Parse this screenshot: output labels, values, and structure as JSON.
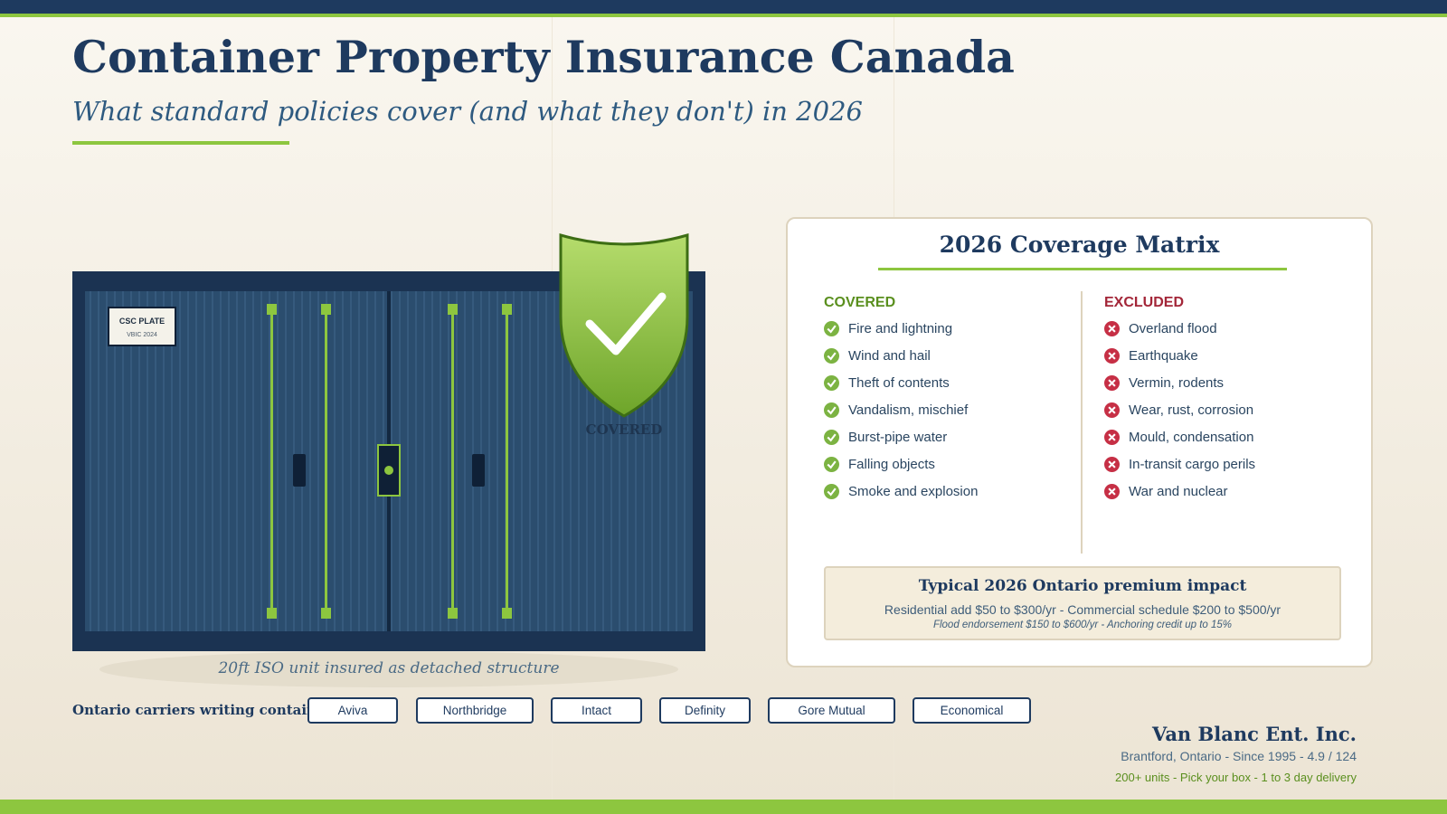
{
  "header": {
    "title": "Container Property Insurance Canada",
    "subtitle": "What standard policies cover (and what they don't) in 2026"
  },
  "container": {
    "plate_title": "CSC PLATE",
    "plate_subtitle": "VBIC 2024",
    "badge": "COVERED",
    "caption": "20ft ISO unit insured as detached structure"
  },
  "matrix": {
    "title": "2026 Coverage Matrix",
    "covered_heading": "COVERED",
    "covered": [
      "Fire and lightning",
      "Wind and hail",
      "Theft of contents",
      "Vandalism, mischief",
      "Burst-pipe water",
      "Falling objects",
      "Smoke and explosion"
    ],
    "excluded_heading": "EXCLUDED",
    "excluded": [
      "Overland flood",
      "Earthquake",
      "Vermin, rodents",
      "Wear, rust, corrosion",
      "Mould, condensation",
      "In-transit cargo perils",
      "War and nuclear"
    ],
    "premium": {
      "title": "Typical 2026 Ontario premium impact",
      "line1": "Residential add $50 to $300/yr - Commercial schedule $200 to $500/yr",
      "line2": "Flood endorsement $150 to $600/yr - Anchoring credit up to 15%"
    }
  },
  "carriers": {
    "label": "Ontario carriers writing container",
    "names": [
      "Aviva",
      "Northbridge",
      "Intact",
      "Definity",
      "Gore Mutual",
      "Economical"
    ]
  },
  "footer": {
    "company": "Van Blanc Ent. Inc.",
    "location": "Brantford, Ontario - Since 1995 - 4.9 / 124",
    "tagline": "200+ units - Pick your box - 1 to 3 day delivery"
  }
}
